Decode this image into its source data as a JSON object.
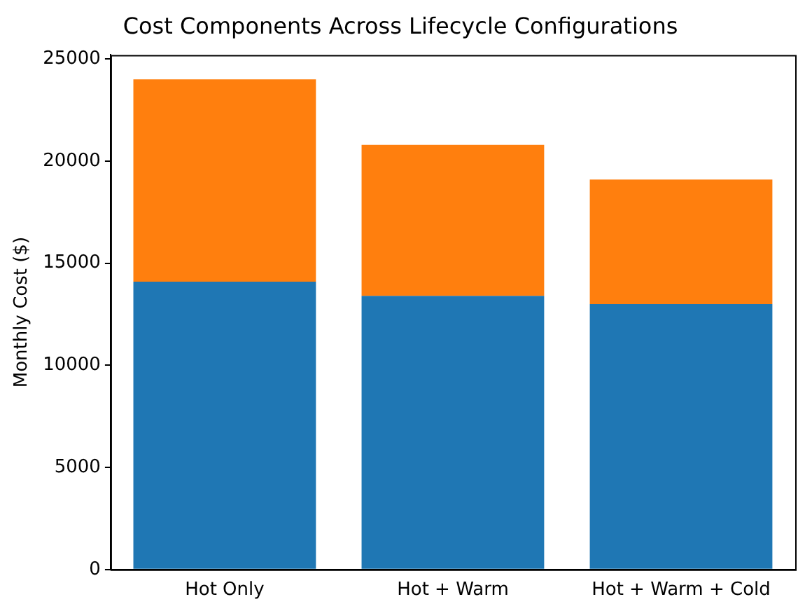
{
  "chart_data": {
    "type": "bar",
    "title": "Cost Components Across Lifecycle Configurations",
    "ylabel": "Monthly Cost ($)",
    "categories": [
      "Hot Only",
      "Hot + Warm",
      "Hot + Warm + Cold"
    ],
    "stacked": true,
    "series": [
      {
        "color": "#1f77b4",
        "values": [
          14100,
          13400,
          13000
        ]
      },
      {
        "color": "#ff7f0e",
        "values": [
          9900,
          7400,
          6100
        ]
      }
    ],
    "ylim": [
      0,
      25200
    ],
    "yticks": [
      0,
      5000,
      10000,
      15000,
      20000,
      25000
    ],
    "grid": false,
    "legend": false
  }
}
